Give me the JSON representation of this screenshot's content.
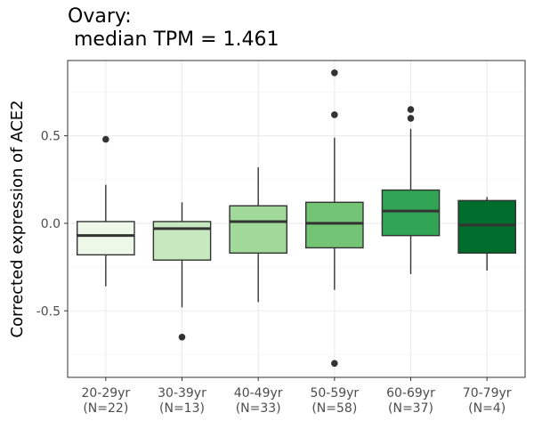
{
  "chart_data": {
    "type": "box",
    "title_line1": "Ovary:",
    "title_line2": " median TPM = 1.461",
    "ylabel": "Corrected expression of ACE2",
    "xlabel": "",
    "ylim": [
      -0.88,
      0.93
    ],
    "yticks": [
      -0.5,
      0.0,
      0.5
    ],
    "ytick_labels": [
      "-0.5",
      "0.0",
      "0.5"
    ],
    "grid": true,
    "categories": [
      {
        "label": "20-29yr",
        "n_label": "(N=22)",
        "min": -0.36,
        "q1": -0.18,
        "median": -0.07,
        "q3": 0.01,
        "max": 0.22,
        "outliers": [
          0.48
        ],
        "color": "#edf8e9"
      },
      {
        "label": "30-39yr",
        "n_label": "(N=13)",
        "min": -0.48,
        "q1": -0.21,
        "median": -0.03,
        "q3": 0.01,
        "max": 0.12,
        "outliers": [
          -0.65
        ],
        "color": "#c7e9c0"
      },
      {
        "label": "40-49yr",
        "n_label": "(N=33)",
        "min": -0.45,
        "q1": -0.17,
        "median": 0.01,
        "q3": 0.1,
        "max": 0.32,
        "outliers": [],
        "color": "#a1d99b"
      },
      {
        "label": "50-59yr",
        "n_label": "(N=58)",
        "min": -0.38,
        "q1": -0.14,
        "median": 0.0,
        "q3": 0.12,
        "max": 0.49,
        "outliers": [
          0.86,
          0.62,
          -0.8
        ],
        "color": "#74c476"
      },
      {
        "label": "60-69yr",
        "n_label": "(N=37)",
        "min": -0.29,
        "q1": -0.07,
        "median": 0.07,
        "q3": 0.19,
        "max": 0.54,
        "outliers": [
          0.65,
          0.6
        ],
        "color": "#31a354"
      },
      {
        "label": "70-79yr",
        "n_label": "(N=4)",
        "min": -0.27,
        "q1": -0.17,
        "median": -0.01,
        "q3": 0.13,
        "max": 0.15,
        "outliers": [],
        "color": "#006d2c"
      }
    ]
  }
}
